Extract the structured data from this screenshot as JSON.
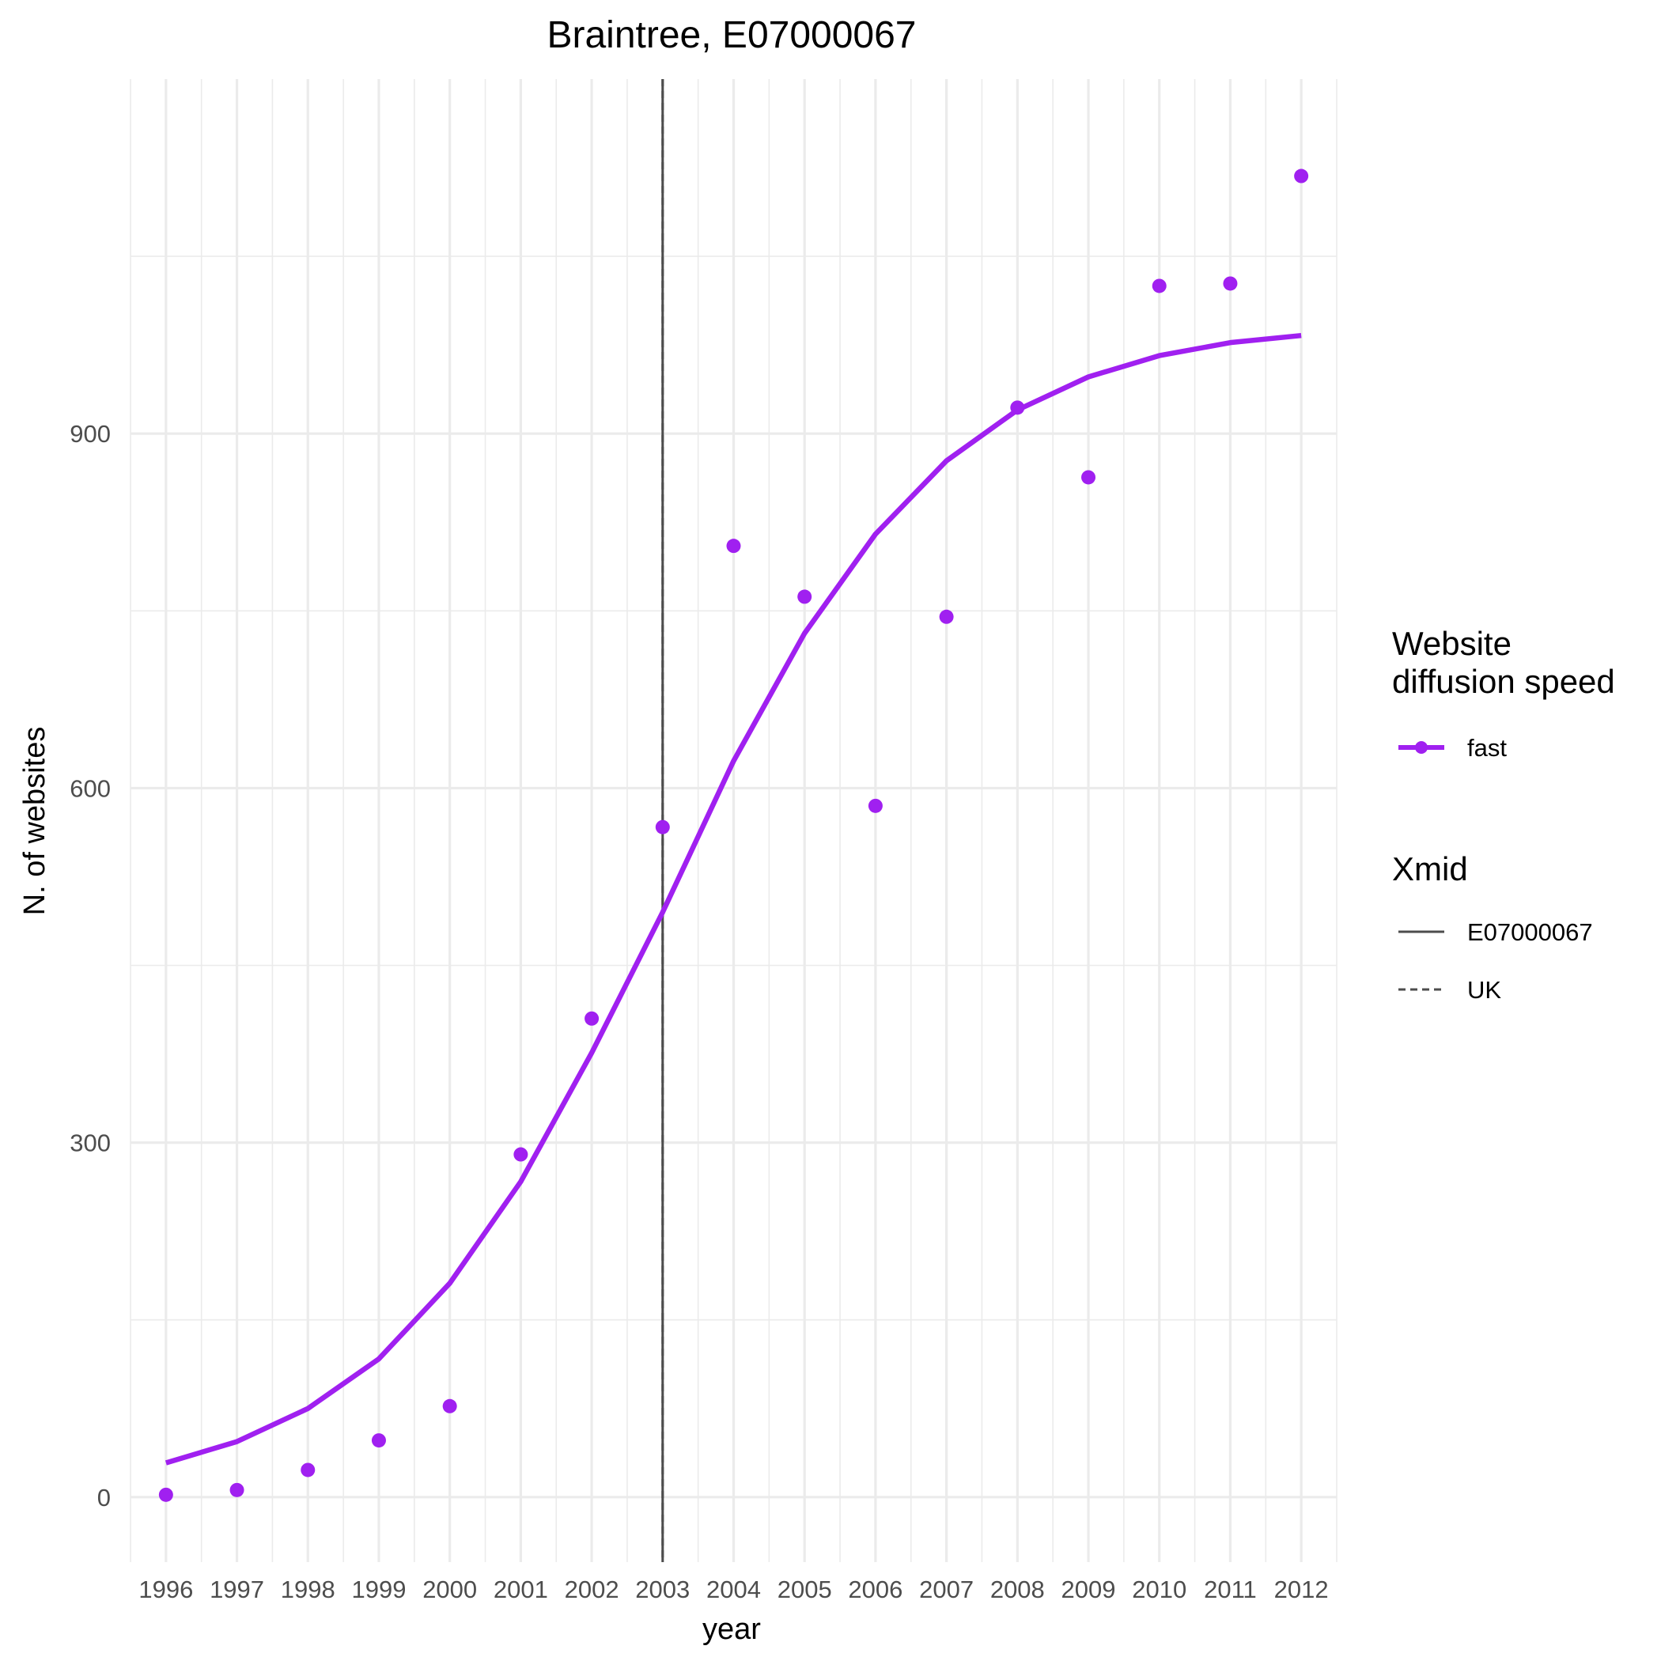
{
  "chart_data": {
    "type": "line",
    "title": "Braintree, E07000067",
    "xlabel": "year",
    "ylabel": "N. of websites",
    "x": [
      1996,
      1997,
      1998,
      1999,
      2000,
      2001,
      2002,
      2003,
      2004,
      2005,
      2006,
      2007,
      2008,
      2009,
      2010,
      2011,
      2012
    ],
    "xlim": [
      1995.5,
      2012.5
    ],
    "ylim": [
      -55,
      1200
    ],
    "y_ticks": [
      0,
      300,
      600,
      900
    ],
    "grid": true,
    "series": [
      {
        "name": "fast",
        "kind": "points",
        "color": "#a020f0",
        "values": [
          2,
          6,
          23,
          48,
          77,
          290,
          405,
          567,
          805,
          762,
          585,
          745,
          922,
          863,
          1025,
          1027,
          1118
        ]
      },
      {
        "name": "fast",
        "kind": "fitted-line",
        "color": "#a020f0",
        "values": [
          29,
          47,
          75,
          117,
          181,
          267,
          376,
          495,
          623,
          731,
          815,
          877,
          920,
          948,
          966,
          977,
          983
        ]
      }
    ],
    "vlines": [
      {
        "name": "E07000067",
        "x": 2003,
        "linetype": "solid",
        "color": "#4d4d4d"
      },
      {
        "name": "UK",
        "x": 2003,
        "linetype": "dashed",
        "color": "#4d4d4d"
      }
    ],
    "legend": {
      "placement": "right",
      "groups": [
        {
          "title": [
            "Website",
            "diffusion speed"
          ],
          "entries": [
            "fast"
          ]
        },
        {
          "title": [
            "Xmid"
          ],
          "entries": [
            "E07000067",
            "UK"
          ]
        }
      ]
    }
  }
}
